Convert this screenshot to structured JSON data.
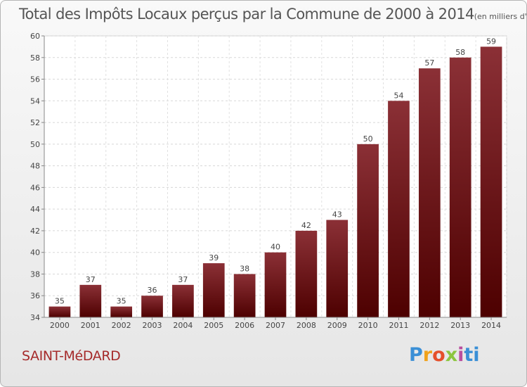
{
  "title": "Total des Impôts Locaux perçus par la Commune de 2000 à 2014",
  "title_unit": "(en milliers d'€)",
  "commune": "SAINT-MéDARD",
  "logo": [
    "P",
    "r",
    "o",
    "x",
    "i",
    "t",
    "i"
  ],
  "colors": {
    "bar_top": "#8b3036",
    "bar_bottom": "#4d0000",
    "commune": "#a52a2a"
  },
  "chart_data": {
    "type": "bar",
    "title": "Total des Impôts Locaux perçus par la Commune de 2000 à 2014",
    "xlabel": "",
    "ylabel": "",
    "categories": [
      "2000",
      "2001",
      "2002",
      "2003",
      "2004",
      "2005",
      "2006",
      "2007",
      "2008",
      "2009",
      "2010",
      "2011",
      "2012",
      "2013",
      "2014"
    ],
    "values": [
      35,
      37,
      35,
      36,
      37,
      39,
      38,
      40,
      42,
      43,
      50,
      54,
      57,
      58,
      59
    ],
    "ylim": [
      34,
      60
    ],
    "yticks": [
      34,
      36,
      38,
      40,
      42,
      44,
      46,
      48,
      50,
      52,
      54,
      56,
      58,
      60
    ],
    "grid": true,
    "data_labels": true
  }
}
